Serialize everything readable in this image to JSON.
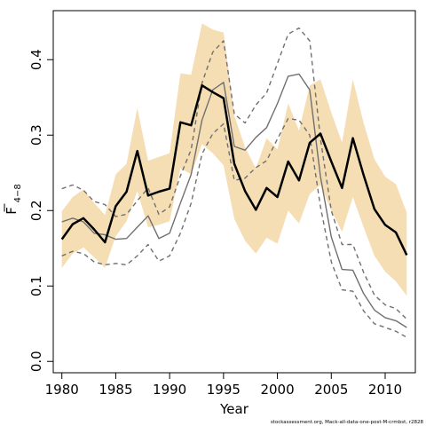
{
  "chart_data": {
    "type": "line",
    "xlabel": "Year",
    "ylabel": "F",
    "ylabel_subscript": "4−8",
    "xlim": [
      1979.2,
      2012.8
    ],
    "ylim": [
      -0.015,
      0.465
    ],
    "xticks": [
      1980,
      1985,
      1990,
      1995,
      2000,
      2005,
      2010
    ],
    "yticks": [
      0.0,
      0.1,
      0.2,
      0.3,
      0.4
    ],
    "ytick_labels": [
      "0.0",
      "0.1",
      "0.2",
      "0.3",
      "0.4"
    ],
    "grid": false,
    "footer_text": "stockassessment.org, Mack-all-data-one-post-M-crmbst, r2828",
    "x": [
      1980,
      1981,
      1982,
      1983,
      1984,
      1985,
      1986,
      1987,
      1988,
      1989,
      1990,
      1991,
      1992,
      1993,
      1994,
      1995,
      1996,
      1997,
      1998,
      1999,
      2000,
      2001,
      2002,
      2003,
      2004,
      2005,
      2006,
      2007,
      2008,
      2009,
      2010,
      2011,
      2012
    ],
    "series": [
      {
        "values": [
          0.162,
          0.182,
          0.19,
          0.175,
          0.158,
          0.206,
          0.225,
          0.279,
          0.22,
          0.225,
          0.229,
          0.317,
          0.313,
          0.366,
          0.357,
          0.349,
          0.262,
          0.226,
          0.201,
          0.23,
          0.218,
          0.265,
          0.24,
          0.29,
          0.302,
          0.265,
          0.23,
          0.296,
          0.247,
          0.202,
          0.181,
          0.171,
          0.141
        ],
        "color": "#000000",
        "width": 2.5,
        "dash": "none"
      },
      {
        "values": [
          0.185,
          0.19,
          0.185,
          0.17,
          0.168,
          0.162,
          0.163,
          0.178,
          0.193,
          0.163,
          0.17,
          0.21,
          0.248,
          0.32,
          0.36,
          0.37,
          0.285,
          0.28,
          0.297,
          0.31,
          0.342,
          0.378,
          0.381,
          0.36,
          0.245,
          0.165,
          0.122,
          0.121,
          0.09,
          0.068,
          0.058,
          0.054,
          0.045
        ],
        "color": "#707070",
        "width": 1.4,
        "dash": "none"
      },
      {
        "values": [
          0.229,
          0.234,
          0.227,
          0.212,
          0.208,
          0.192,
          0.195,
          0.213,
          0.23,
          0.195,
          0.205,
          0.246,
          0.281,
          0.369,
          0.41,
          0.425,
          0.328,
          0.316,
          0.34,
          0.356,
          0.395,
          0.434,
          0.442,
          0.425,
          0.295,
          0.2,
          0.155,
          0.155,
          0.118,
          0.088,
          0.075,
          0.07,
          0.056
        ],
        "color": "#707070",
        "width": 1.4,
        "dash": "5,4"
      },
      {
        "values": [
          0.14,
          0.146,
          0.143,
          0.132,
          0.128,
          0.13,
          0.128,
          0.14,
          0.155,
          0.133,
          0.14,
          0.17,
          0.21,
          0.275,
          0.302,
          0.315,
          0.24,
          0.243,
          0.257,
          0.266,
          0.295,
          0.322,
          0.32,
          0.3,
          0.205,
          0.132,
          0.095,
          0.093,
          0.067,
          0.05,
          0.045,
          0.04,
          0.032
        ],
        "color": "#707070",
        "width": 1.4,
        "dash": "5,4"
      }
    ],
    "band": {
      "color": "#f5deb3",
      "upper": [
        0.199,
        0.218,
        0.228,
        0.21,
        0.194,
        0.248,
        0.262,
        0.336,
        0.266,
        0.271,
        0.276,
        0.382,
        0.38,
        0.448,
        0.44,
        0.436,
        0.326,
        0.284,
        0.256,
        0.296,
        0.281,
        0.342,
        0.306,
        0.366,
        0.374,
        0.33,
        0.29,
        0.374,
        0.316,
        0.268,
        0.245,
        0.235,
        0.197
      ],
      "lower": [
        0.124,
        0.143,
        0.151,
        0.138,
        0.124,
        0.166,
        0.186,
        0.226,
        0.178,
        0.181,
        0.186,
        0.256,
        0.248,
        0.288,
        0.276,
        0.26,
        0.189,
        0.16,
        0.143,
        0.164,
        0.156,
        0.2,
        0.183,
        0.222,
        0.234,
        0.2,
        0.172,
        0.218,
        0.178,
        0.14,
        0.119,
        0.106,
        0.087
      ]
    }
  }
}
